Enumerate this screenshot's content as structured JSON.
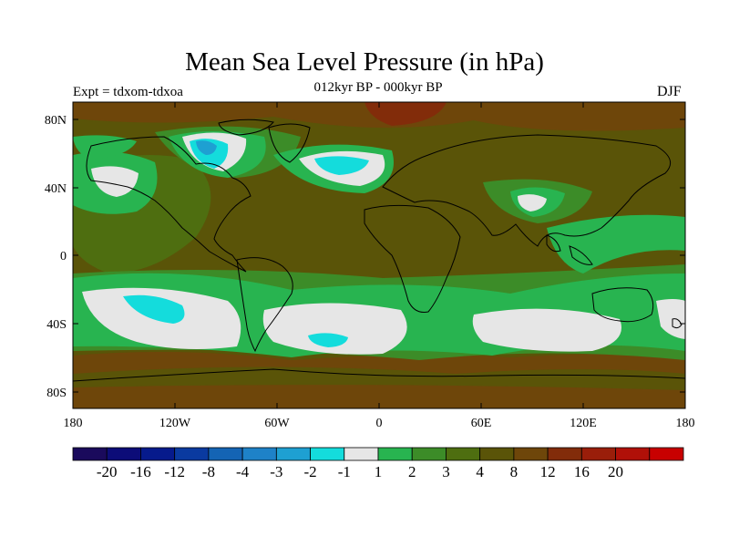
{
  "title": "Mean Sea Level Pressure (in hPa)",
  "subtitle": "012kyr BP - 000kyr BP",
  "left_label": "Expt = tdxom-tdxoa",
  "right_label": "DJF",
  "map": {
    "lat_ticks": [
      "80N",
      "40N",
      "0",
      "40S",
      "80S"
    ],
    "lon_ticks": [
      "180",
      "120W",
      "60W",
      "0",
      "60E",
      "120E",
      "180"
    ]
  },
  "colorbar": {
    "colors": [
      "#1a0a5c",
      "#0c0c78",
      "#061a8c",
      "#0a3aa0",
      "#1464b4",
      "#1e82c8",
      "#1ea0d2",
      "#14dcdc",
      "#e6e6e6",
      "#28b450",
      "#3c8c28",
      "#4e6e10",
      "#5a5408",
      "#6e460a",
      "#822c0a",
      "#9a1e0a",
      "#b01008",
      "#c80000"
    ],
    "labels": [
      "-20",
      "-16",
      "-12",
      "-8",
      "-4",
      "-3",
      "-2",
      "-1",
      "1",
      "2",
      "3",
      "4",
      "8",
      "12",
      "16",
      "20"
    ]
  }
}
